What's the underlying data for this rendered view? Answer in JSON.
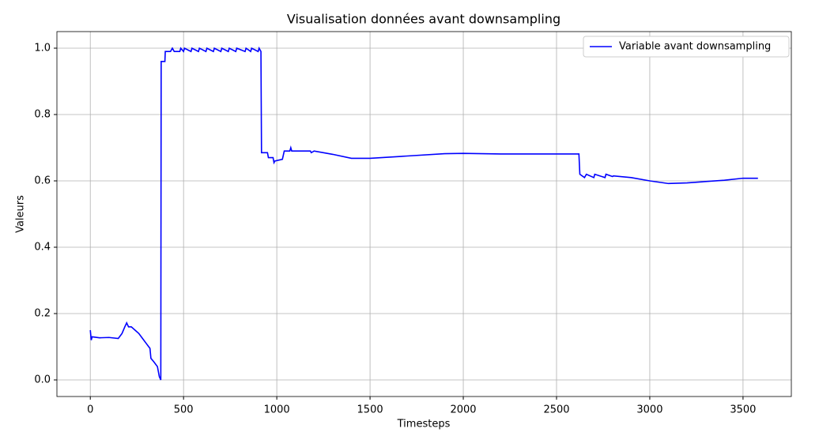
{
  "chart_data": {
    "type": "line",
    "title": "Visualisation données avant downsampling",
    "x_label": "Timesteps",
    "y_label": "Valeurs",
    "x": [
      0,
      5,
      10,
      50,
      100,
      150,
      170,
      185,
      195,
      205,
      220,
      240,
      260,
      280,
      300,
      320,
      325,
      340,
      360,
      370,
      378,
      380,
      400,
      402,
      430,
      440,
      450,
      480,
      485,
      500,
      505,
      540,
      545,
      580,
      585,
      620,
      625,
      660,
      665,
      700,
      705,
      740,
      745,
      780,
      785,
      830,
      835,
      860,
      865,
      900,
      905,
      915,
      918,
      950,
      955,
      980,
      985,
      990,
      1030,
      1040,
      1070,
      1075,
      1080,
      1180,
      1185,
      1200,
      1300,
      1400,
      1500,
      1700,
      1900,
      2000,
      2200,
      2620,
      2625,
      2650,
      2660,
      2700,
      2705,
      2760,
      2765,
      2800,
      2805,
      2900,
      3000,
      3100,
      3200,
      3400,
      3500,
      3580
    ],
    "series": [
      {
        "name": "Variable avant downsampling",
        "color": "#0000ff",
        "values": [
          0.15,
          0.12,
          0.13,
          0.127,
          0.128,
          0.125,
          0.14,
          0.16,
          0.172,
          0.16,
          0.16,
          0.15,
          0.14,
          0.125,
          0.11,
          0.095,
          0.065,
          0.055,
          0.04,
          0.01,
          0.0,
          0.96,
          0.96,
          0.99,
          0.99,
          1.0,
          0.99,
          0.99,
          1.0,
          0.99,
          1.0,
          0.99,
          1.0,
          0.99,
          1.0,
          0.99,
          1.0,
          0.99,
          1.0,
          0.99,
          1.0,
          0.99,
          1.0,
          0.99,
          1.0,
          0.99,
          1.0,
          0.99,
          1.0,
          0.99,
          1.0,
          0.99,
          0.685,
          0.685,
          0.67,
          0.67,
          0.655,
          0.66,
          0.665,
          0.69,
          0.69,
          0.7,
          0.69,
          0.69,
          0.685,
          0.69,
          0.68,
          0.668,
          0.668,
          0.675,
          0.682,
          0.683,
          0.681,
          0.681,
          0.62,
          0.61,
          0.62,
          0.61,
          0.62,
          0.61,
          0.62,
          0.613,
          0.615,
          0.61,
          0.6,
          0.592,
          0.594,
          0.602,
          0.608,
          0.608
        ]
      }
    ],
    "xlim": [
      -179,
      3759
    ],
    "ylim": [
      -0.05,
      1.05
    ],
    "xticks": [
      0,
      500,
      1000,
      1500,
      2000,
      2500,
      3000,
      3500
    ],
    "yticks": [
      {
        "value": 0,
        "label": "0.0"
      },
      0.2,
      0.4,
      0.6,
      0.8,
      {
        "value": 1,
        "label": "1.0"
      }
    ],
    "grid": true,
    "legend": "upper right"
  }
}
